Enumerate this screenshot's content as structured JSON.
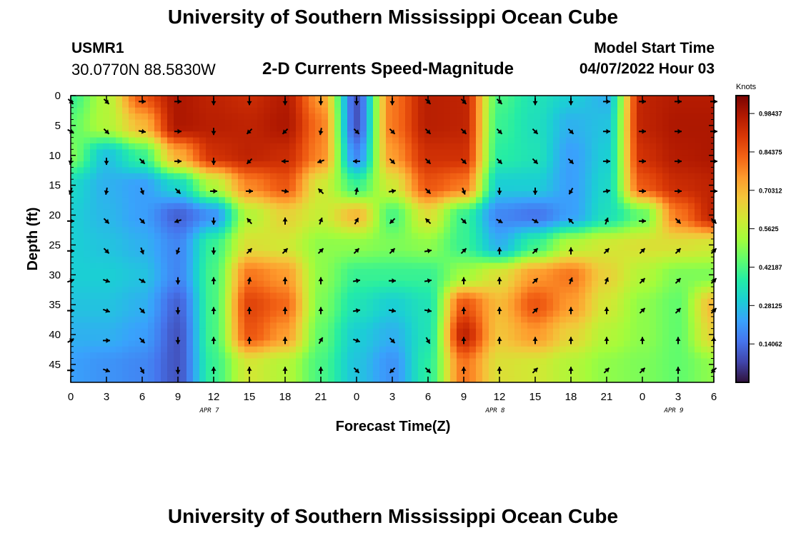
{
  "header": {
    "title": "University of Southern Mississippi Ocean Cube",
    "station_id": "USMR1",
    "station_coords": "30.0770N  88.5830W",
    "chart_title": "2-D Currents Speed-Magnitude",
    "start_label": "Model Start Time",
    "start_value": "04/07/2022 Hour 03"
  },
  "footer": {
    "title": "University of Southern Mississippi Ocean Cube"
  },
  "chart_data": {
    "type": "heatmap",
    "title": "2-D Currents Speed-Magnitude",
    "xlabel": "Forecast Time(Z)",
    "ylabel": "Depth (ft)",
    "x_tick_labels": [
      "0",
      "3",
      "6",
      "9",
      "12",
      "15",
      "18",
      "21",
      "0",
      "3",
      "6",
      "9",
      "12",
      "15",
      "18",
      "21",
      "0",
      "3",
      "6"
    ],
    "x_day_labels": [
      {
        "label": "APR 7",
        "index": 4
      },
      {
        "label": "APR 8",
        "index": 12
      },
      {
        "label": "APR 9",
        "index": 17
      }
    ],
    "y_tick_labels": [
      "0",
      "5",
      "10",
      "15",
      "20",
      "25",
      "30",
      "35",
      "40",
      "45"
    ],
    "ylim": [
      0,
      48
    ],
    "colorbar_label": "Knots",
    "colorbar_ticks": [
      "0.14062",
      "0.28125",
      "0.42187",
      "0.5625",
      "0.70312",
      "0.84375",
      "0.98437"
    ],
    "colorbar_tick_values": [
      0.14062,
      0.28125,
      0.42187,
      0.5625,
      0.70312,
      0.84375,
      0.98437
    ],
    "colorbar_range": [
      0,
      1.05
    ],
    "colors": [
      "#30123b",
      "#4145ab",
      "#4675ed",
      "#39a2fc",
      "#1bcfd4",
      "#24eca6",
      "#61fc6c",
      "#a4fc3b",
      "#d1e834",
      "#f3c63a",
      "#fe9b2d",
      "#f36315",
      "#d93806",
      "#b11901",
      "#7a0403"
    ],
    "depths": [
      0,
      5,
      10,
      15,
      20,
      25,
      30,
      35,
      40,
      45
    ],
    "speed_knots": [
      [
        0.4,
        0.55,
        0.85,
        0.98,
        0.95,
        0.93,
        0.97,
        0.75,
        0.1,
        0.8,
        0.96,
        0.95,
        0.42,
        0.35,
        0.3,
        0.25,
        0.95,
        0.97,
        0.97
      ],
      [
        0.45,
        0.55,
        0.7,
        0.98,
        0.96,
        0.95,
        0.98,
        0.8,
        0.1,
        0.8,
        0.96,
        0.95,
        0.4,
        0.34,
        0.25,
        0.28,
        0.95,
        0.98,
        0.98
      ],
      [
        0.48,
        0.28,
        0.4,
        0.72,
        0.92,
        0.95,
        0.93,
        0.78,
        0.18,
        0.75,
        0.92,
        0.92,
        0.38,
        0.35,
        0.22,
        0.3,
        0.92,
        0.97,
        0.98
      ],
      [
        0.32,
        0.25,
        0.22,
        0.32,
        0.55,
        0.78,
        0.85,
        0.6,
        0.4,
        0.6,
        0.85,
        0.8,
        0.3,
        0.3,
        0.22,
        0.32,
        0.85,
        0.93,
        0.95
      ],
      [
        0.3,
        0.26,
        0.22,
        0.12,
        0.2,
        0.55,
        0.65,
        0.58,
        0.7,
        0.42,
        0.62,
        0.4,
        0.18,
        0.15,
        0.22,
        0.34,
        0.45,
        0.8,
        0.95
      ],
      [
        0.3,
        0.28,
        0.25,
        0.18,
        0.4,
        0.62,
        0.6,
        0.5,
        0.5,
        0.48,
        0.5,
        0.4,
        0.25,
        0.4,
        0.55,
        0.6,
        0.62,
        0.62,
        0.6
      ],
      [
        0.3,
        0.3,
        0.28,
        0.18,
        0.42,
        0.8,
        0.75,
        0.5,
        0.4,
        0.4,
        0.4,
        0.52,
        0.62,
        0.75,
        0.8,
        0.65,
        0.55,
        0.48,
        0.48
      ],
      [
        0.28,
        0.28,
        0.25,
        0.12,
        0.42,
        0.88,
        0.82,
        0.48,
        0.35,
        0.3,
        0.35,
        0.85,
        0.7,
        0.85,
        0.75,
        0.6,
        0.5,
        0.45,
        0.7
      ],
      [
        0.25,
        0.25,
        0.22,
        0.1,
        0.42,
        0.85,
        0.75,
        0.45,
        0.3,
        0.25,
        0.35,
        0.95,
        0.68,
        0.75,
        0.65,
        0.55,
        0.5,
        0.45,
        0.65
      ],
      [
        0.22,
        0.2,
        0.18,
        0.1,
        0.4,
        0.6,
        0.55,
        0.42,
        0.28,
        0.2,
        0.38,
        0.8,
        0.62,
        0.6,
        0.55,
        0.5,
        0.48,
        0.45,
        0.5
      ]
    ],
    "direction_deg": [
      [
        135,
        135,
        90,
        90,
        180,
        180,
        180,
        180,
        180,
        180,
        135,
        135,
        135,
        180,
        180,
        90,
        90,
        90,
        90
      ],
      [
        120,
        135,
        100,
        90,
        180,
        225,
        225,
        190,
        135,
        135,
        135,
        135,
        135,
        135,
        135,
        90,
        90,
        90,
        90
      ],
      [
        190,
        180,
        135,
        90,
        180,
        225,
        270,
        250,
        270,
        135,
        135,
        135,
        135,
        135,
        135,
        90,
        90,
        90,
        90
      ],
      [
        200,
        190,
        160,
        135,
        90,
        90,
        100,
        315,
        10,
        80,
        135,
        160,
        180,
        180,
        210,
        80,
        90,
        90,
        90
      ],
      [
        90,
        135,
        135,
        250,
        180,
        320,
        0,
        20,
        30,
        225,
        315,
        135,
        120,
        120,
        315,
        20,
        90,
        135,
        135
      ],
      [
        90,
        135,
        160,
        200,
        180,
        45,
        45,
        45,
        45,
        45,
        80,
        45,
        0,
        45,
        0,
        45,
        45,
        45,
        45
      ],
      [
        70,
        110,
        120,
        180,
        0,
        10,
        0,
        0,
        80,
        90,
        80,
        0,
        0,
        45,
        20,
        20,
        45,
        45,
        45
      ],
      [
        90,
        110,
        135,
        180,
        0,
        0,
        0,
        0,
        80,
        100,
        100,
        0,
        0,
        45,
        0,
        0,
        45,
        45,
        45
      ],
      [
        60,
        90,
        135,
        180,
        0,
        0,
        0,
        30,
        110,
        135,
        150,
        0,
        0,
        0,
        0,
        0,
        0,
        0,
        0
      ],
      [
        90,
        110,
        150,
        180,
        0,
        0,
        0,
        0,
        135,
        225,
        135,
        0,
        0,
        45,
        0,
        45,
        45,
        0,
        225
      ]
    ]
  }
}
